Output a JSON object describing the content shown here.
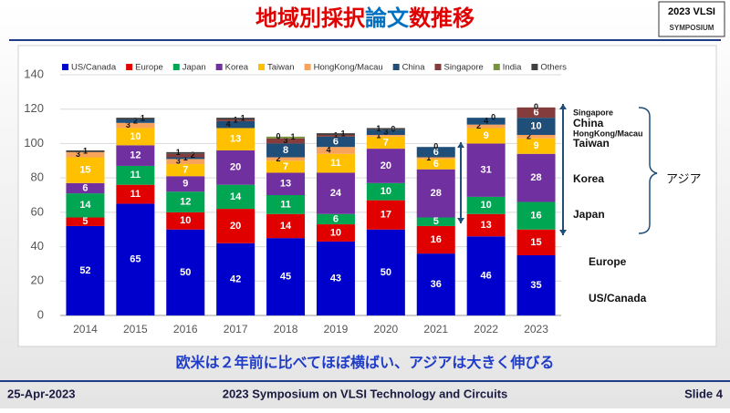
{
  "header": {
    "title": [
      "地域別採択",
      "論文",
      "数推移"
    ],
    "logo": [
      "2023 VLSI",
      "SYMPOSIUM"
    ]
  },
  "chart_data": {
    "type": "stacked-bar",
    "categories": [
      "2014",
      "2015",
      "2016",
      "2017",
      "2018",
      "2019",
      "2020",
      "2021",
      "2022",
      "2023"
    ],
    "series": [
      {
        "name": "US/Canada",
        "color": "#0000cc",
        "values": [
          52,
          65,
          50,
          42,
          45,
          43,
          50,
          36,
          46,
          35
        ]
      },
      {
        "name": "Europe",
        "color": "#e00000",
        "values": [
          5,
          11,
          10,
          20,
          14,
          10,
          17,
          16,
          13,
          15
        ]
      },
      {
        "name": "Japan",
        "color": "#00a651",
        "values": [
          14,
          11,
          12,
          14,
          11,
          6,
          10,
          5,
          10,
          16
        ]
      },
      {
        "name": "Korea",
        "color": "#7030a0",
        "values": [
          6,
          12,
          9,
          20,
          13,
          24,
          20,
          28,
          31,
          28
        ]
      },
      {
        "name": "Taiwan",
        "color": "#ffc000",
        "values": [
          15,
          10,
          7,
          13,
          7,
          11,
          7,
          6,
          9,
          9
        ]
      },
      {
        "name": "HongKong/Macau",
        "color": "#f7a35c",
        "values": [
          3,
          3,
          3,
          null,
          2,
          4,
          1,
          1,
          2,
          2
        ]
      },
      {
        "name": "China",
        "color": "#1f4e79",
        "values": [
          null,
          2,
          1,
          4,
          8,
          6,
          3,
          6,
          4,
          10
        ]
      },
      {
        "name": "Singapore",
        "color": "#843c3c",
        "values": [
          null,
          null,
          2,
          1,
          3,
          1,
          0,
          0,
          0,
          6
        ]
      },
      {
        "name": "India",
        "color": "#77933c",
        "values": [
          null,
          null,
          null,
          null,
          1,
          null,
          null,
          null,
          null,
          null
        ]
      },
      {
        "name": "Others",
        "color": "#404040",
        "values": [
          1,
          1,
          1,
          1,
          0,
          1,
          1,
          null,
          null,
          0
        ]
      }
    ],
    "ylim": [
      0,
      140
    ],
    "yticks": [
      0,
      20,
      40,
      60,
      80,
      100,
      120,
      140
    ],
    "grid": true,
    "annotations": [
      "Singapore",
      "China",
      "HongKong/Macau",
      "Taiwan",
      "Korea",
      "Japan",
      "Europe",
      "US/Canada",
      "アジア"
    ],
    "subtitle": "欧米は２年前に比べてほぼ横ばい、アジアは大きく伸びる"
  },
  "footer": {
    "date": "25-Apr-2023",
    "event": "2023 Symposium on VLSI Technology and Circuits",
    "slide": "Slide 4"
  }
}
